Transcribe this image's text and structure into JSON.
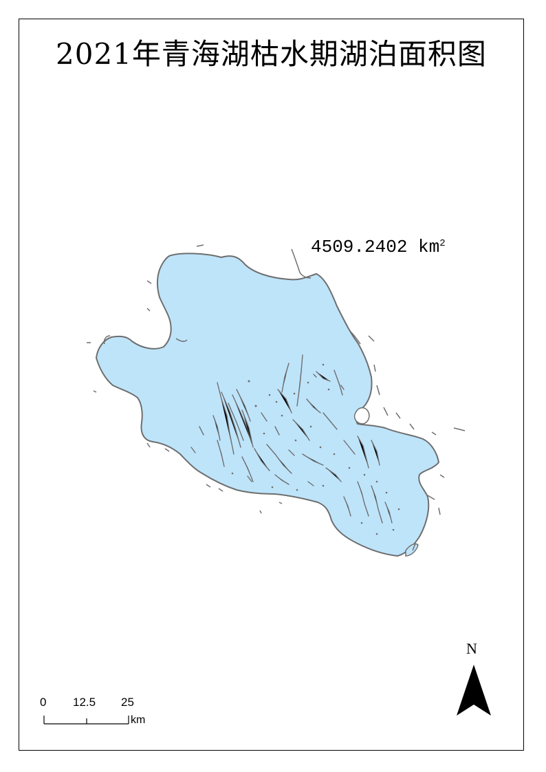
{
  "title": "2021年青海湖枯水期湖泊面积图",
  "area": {
    "value": "4509.2402",
    "unit": "km",
    "unit_sup": "2"
  },
  "north_arrow": {
    "label": "N"
  },
  "scale_bar": {
    "ticks": [
      "0",
      "12.5",
      "25"
    ],
    "unit": "km"
  },
  "colors": {
    "water": "#bee4fa",
    "shore": "#6e6e6e",
    "frame": "#000000"
  },
  "icons": [
    "north-arrow-icon"
  ]
}
